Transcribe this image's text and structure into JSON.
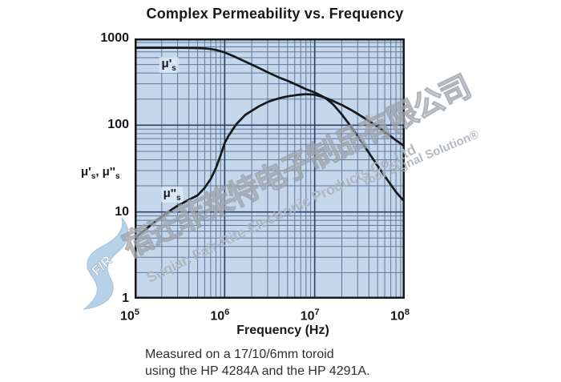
{
  "title": "Complex Permeability vs. Frequency",
  "caption": {
    "line1": "Measured on a 17/10/6mm toroid",
    "line2": "using the HP 4284A and the HP 4291A."
  },
  "watermark": {
    "chinese": "宿迁菲莱特电子制品有限公司",
    "latin": "Suqian Fair-Rite Electronic Products Co.,Ltd",
    "slogan": "Your Signal Solution®",
    "logo_letters": "F/R"
  },
  "colors": {
    "plot_bg": "#c4d7eb",
    "grid_minor": "#62789c",
    "grid_major": "#2c4166",
    "border": "#15181c",
    "curve": "#15181c",
    "watermark_gray": "#aeb4bc",
    "logo_blue": "#b4cfe8"
  },
  "chart_data": {
    "type": "line",
    "title": "Complex Permeability vs. Frequency",
    "grid": "log-log, decade majors with 2-9 minors",
    "legend_position": "inline-curve-labels",
    "x_axis": {
      "label": "Frequency (Hz)",
      "scale": "log",
      "min": 100000,
      "max": 100000000,
      "ticks": [
        {
          "base": "10",
          "exp": "5"
        },
        {
          "base": "10",
          "exp": "6"
        },
        {
          "base": "10",
          "exp": "7"
        },
        {
          "base": "10",
          "exp": "8"
        }
      ]
    },
    "y_axis": {
      "label": "μ's, μ''s",
      "label_parts": [
        [
          "μ'",
          "s"
        ],
        [
          ", ",
          ""
        ],
        [
          "μ''",
          "s"
        ]
      ],
      "scale": "log",
      "min": 1,
      "max": 1000,
      "ticks": [
        "1000",
        "100",
        "10",
        "1"
      ]
    },
    "series": [
      {
        "name": "μ's",
        "label": {
          "text": "μ'",
          "sub": "s",
          "f": 240000,
          "v": 500
        },
        "points": [
          [
            100000,
            780
          ],
          [
            150000,
            780
          ],
          [
            200000,
            780
          ],
          [
            300000,
            780
          ],
          [
            400000,
            778
          ],
          [
            500000,
            775
          ],
          [
            600000,
            768
          ],
          [
            700000,
            755
          ],
          [
            800000,
            738
          ],
          [
            1000000,
            690
          ],
          [
            1300000,
            615
          ],
          [
            1600000,
            555
          ],
          [
            2000000,
            500
          ],
          [
            2500000,
            448
          ],
          [
            3000000,
            408
          ],
          [
            4000000,
            355
          ],
          [
            5000000,
            325
          ],
          [
            6500000,
            288
          ],
          [
            8000000,
            260
          ],
          [
            10000000,
            238
          ],
          [
            13000000,
            208
          ],
          [
            16000000,
            174
          ],
          [
            20000000,
            133
          ],
          [
            25000000,
            98
          ],
          [
            30000000,
            75
          ],
          [
            40000000,
            48
          ],
          [
            50000000,
            34
          ],
          [
            65000000,
            23
          ],
          [
            80000000,
            17
          ],
          [
            100000000,
            13
          ]
        ]
      },
      {
        "name": "μ''s",
        "label": {
          "text": "μ''",
          "sub": "s",
          "f": 260000,
          "v": 16
        },
        "points": [
          [
            100000,
            5.0
          ],
          [
            130000,
            6.2
          ],
          [
            160000,
            7.4
          ],
          [
            200000,
            8.8
          ],
          [
            250000,
            10.4
          ],
          [
            300000,
            11.8
          ],
          [
            400000,
            13.8
          ],
          [
            500000,
            15.5
          ],
          [
            600000,
            19
          ],
          [
            700000,
            24
          ],
          [
            800000,
            32
          ],
          [
            900000,
            45
          ],
          [
            1000000,
            62
          ],
          [
            1100000,
            75
          ],
          [
            1350000,
            103
          ],
          [
            1700000,
            132
          ],
          [
            2400000,
            165
          ],
          [
            3000000,
            185
          ],
          [
            3500000,
            196
          ],
          [
            4300000,
            208
          ],
          [
            5000000,
            215
          ],
          [
            6500000,
            224
          ],
          [
            8000000,
            228
          ],
          [
            10000000,
            225
          ],
          [
            13000000,
            208
          ],
          [
            16000000,
            190
          ],
          [
            20000000,
            171
          ],
          [
            25000000,
            151
          ],
          [
            30000000,
            135
          ],
          [
            40000000,
            112
          ],
          [
            50000000,
            96
          ],
          [
            65000000,
            79
          ],
          [
            80000000,
            67
          ],
          [
            100000000,
            57
          ]
        ]
      }
    ]
  }
}
